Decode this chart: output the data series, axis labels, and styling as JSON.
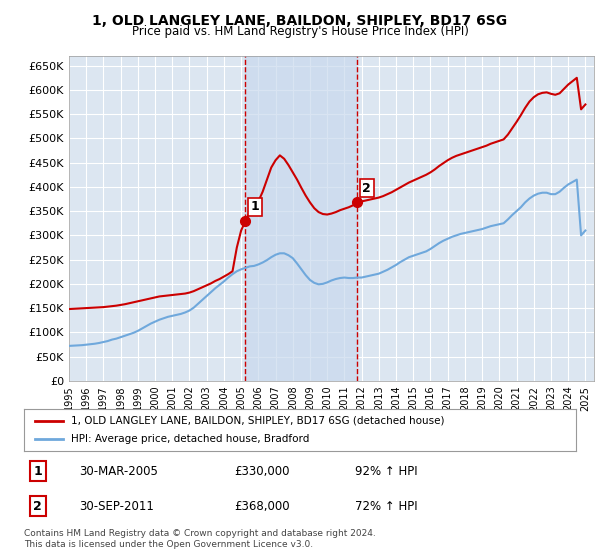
{
  "title": "1, OLD LANGLEY LANE, BAILDON, SHIPLEY, BD17 6SG",
  "subtitle": "Price paid vs. HM Land Registry's House Price Index (HPI)",
  "background_color": "#ffffff",
  "plot_bg_color": "#dce6f1",
  "grid_color": "#ffffff",
  "ylim": [
    0,
    670000
  ],
  "yticks": [
    0,
    50000,
    100000,
    150000,
    200000,
    250000,
    300000,
    350000,
    400000,
    450000,
    500000,
    550000,
    600000,
    650000
  ],
  "xlabel_years": [
    "1995",
    "1996",
    "1997",
    "1998",
    "1999",
    "2000",
    "2001",
    "2002",
    "2003",
    "2004",
    "2005",
    "2006",
    "2007",
    "2008",
    "2009",
    "2010",
    "2011",
    "2012",
    "2013",
    "2014",
    "2015",
    "2016",
    "2017",
    "2018",
    "2019",
    "2020",
    "2021",
    "2022",
    "2023",
    "2024",
    "2025"
  ],
  "sale1_date": 2005.25,
  "sale1_price": 330000,
  "sale1_label": "1",
  "sale2_date": 2011.75,
  "sale2_price": 368000,
  "sale2_label": "2",
  "hpi_line_color": "#6fa8dc",
  "price_line_color": "#cc0000",
  "sale_marker_color": "#cc0000",
  "shade_color": "#c9d9ed",
  "legend_line1": "1, OLD LANGLEY LANE, BAILDON, SHIPLEY, BD17 6SG (detached house)",
  "legend_line2": "HPI: Average price, detached house, Bradford",
  "table_row1": [
    "1",
    "30-MAR-2005",
    "£330,000",
    "92% ↑ HPI"
  ],
  "table_row2": [
    "2",
    "30-SEP-2011",
    "£368,000",
    "72% ↑ HPI"
  ],
  "footnote": "Contains HM Land Registry data © Crown copyright and database right 2024.\nThis data is licensed under the Open Government Licence v3.0.",
  "hpi_data_x": [
    1995.0,
    1995.25,
    1995.5,
    1995.75,
    1996.0,
    1996.25,
    1996.5,
    1996.75,
    1997.0,
    1997.25,
    1997.5,
    1997.75,
    1998.0,
    1998.25,
    1998.5,
    1998.75,
    1999.0,
    1999.25,
    1999.5,
    1999.75,
    2000.0,
    2000.25,
    2000.5,
    2000.75,
    2001.0,
    2001.25,
    2001.5,
    2001.75,
    2002.0,
    2002.25,
    2002.5,
    2002.75,
    2003.0,
    2003.25,
    2003.5,
    2003.75,
    2004.0,
    2004.25,
    2004.5,
    2004.75,
    2005.0,
    2005.25,
    2005.5,
    2005.75,
    2006.0,
    2006.25,
    2006.5,
    2006.75,
    2007.0,
    2007.25,
    2007.5,
    2007.75,
    2008.0,
    2008.25,
    2008.5,
    2008.75,
    2009.0,
    2009.25,
    2009.5,
    2009.75,
    2010.0,
    2010.25,
    2010.5,
    2010.75,
    2011.0,
    2011.25,
    2011.5,
    2011.75,
    2012.0,
    2012.25,
    2012.5,
    2012.75,
    2013.0,
    2013.25,
    2013.5,
    2013.75,
    2014.0,
    2014.25,
    2014.5,
    2014.75,
    2015.0,
    2015.25,
    2015.5,
    2015.75,
    2016.0,
    2016.25,
    2016.5,
    2016.75,
    2017.0,
    2017.25,
    2017.5,
    2017.75,
    2018.0,
    2018.25,
    2018.5,
    2018.75,
    2019.0,
    2019.25,
    2019.5,
    2019.75,
    2020.0,
    2020.25,
    2020.5,
    2020.75,
    2021.0,
    2021.25,
    2021.5,
    2021.75,
    2022.0,
    2022.25,
    2022.5,
    2022.75,
    2023.0,
    2023.25,
    2023.5,
    2023.75,
    2024.0,
    2024.25,
    2024.5,
    2024.75,
    2025.0
  ],
  "hpi_data_y": [
    72000,
    72500,
    73000,
    73500,
    74500,
    75500,
    76500,
    78000,
    80000,
    82000,
    85000,
    87000,
    90000,
    93000,
    96000,
    99000,
    103000,
    108000,
    113000,
    118000,
    122000,
    126000,
    129000,
    132000,
    134000,
    136000,
    138000,
    141000,
    145000,
    151000,
    159000,
    167000,
    175000,
    183000,
    191000,
    198000,
    205000,
    213000,
    220000,
    226000,
    230000,
    233000,
    236000,
    237000,
    240000,
    244000,
    249000,
    255000,
    260000,
    263000,
    263000,
    259000,
    253000,
    242000,
    230000,
    218000,
    208000,
    202000,
    199000,
    200000,
    203000,
    207000,
    210000,
    212000,
    213000,
    212000,
    212000,
    213000,
    213000,
    215000,
    217000,
    219000,
    221000,
    225000,
    229000,
    234000,
    239000,
    245000,
    250000,
    255000,
    258000,
    261000,
    264000,
    267000,
    272000,
    278000,
    284000,
    289000,
    293000,
    297000,
    300000,
    303000,
    305000,
    307000,
    309000,
    311000,
    313000,
    316000,
    319000,
    321000,
    323000,
    325000,
    333000,
    342000,
    350000,
    358000,
    368000,
    376000,
    382000,
    386000,
    388000,
    388000,
    385000,
    385000,
    390000,
    398000,
    405000,
    410000,
    415000,
    300000,
    310000
  ],
  "price_data_x": [
    1995.0,
    1995.25,
    1995.5,
    1995.75,
    1996.0,
    1996.25,
    1996.5,
    1996.75,
    1997.0,
    1997.25,
    1997.5,
    1997.75,
    1998.0,
    1998.25,
    1998.5,
    1998.75,
    1999.0,
    1999.25,
    1999.5,
    1999.75,
    2000.0,
    2000.25,
    2000.5,
    2000.75,
    2001.0,
    2001.25,
    2001.5,
    2001.75,
    2002.0,
    2002.25,
    2002.5,
    2002.75,
    2003.0,
    2003.25,
    2003.5,
    2003.75,
    2004.0,
    2004.25,
    2004.5,
    2004.75,
    2005.0,
    2005.25,
    2005.5,
    2005.75,
    2006.0,
    2006.25,
    2006.5,
    2006.75,
    2007.0,
    2007.25,
    2007.5,
    2007.75,
    2008.0,
    2008.25,
    2008.5,
    2008.75,
    2009.0,
    2009.25,
    2009.5,
    2009.75,
    2010.0,
    2010.25,
    2010.5,
    2010.75,
    2011.0,
    2011.25,
    2011.5,
    2011.75,
    2012.0,
    2012.25,
    2012.5,
    2012.75,
    2013.0,
    2013.25,
    2013.5,
    2013.75,
    2014.0,
    2014.25,
    2014.5,
    2014.75,
    2015.0,
    2015.25,
    2015.5,
    2015.75,
    2016.0,
    2016.25,
    2016.5,
    2016.75,
    2017.0,
    2017.25,
    2017.5,
    2017.75,
    2018.0,
    2018.25,
    2018.5,
    2018.75,
    2019.0,
    2019.25,
    2019.5,
    2019.75,
    2020.0,
    2020.25,
    2020.5,
    2020.75,
    2021.0,
    2021.25,
    2021.5,
    2021.75,
    2022.0,
    2022.25,
    2022.5,
    2022.75,
    2023.0,
    2023.25,
    2023.5,
    2023.75,
    2024.0,
    2024.25,
    2024.5,
    2024.75,
    2025.0
  ],
  "price_data_y": [
    148000,
    148500,
    149000,
    149500,
    150000,
    150500,
    151000,
    151500,
    152000,
    153000,
    154000,
    155000,
    156500,
    158000,
    160000,
    162000,
    164000,
    166000,
    168000,
    170000,
    172000,
    174000,
    175000,
    176000,
    177000,
    178000,
    179000,
    180000,
    182000,
    185000,
    189000,
    193000,
    197000,
    201000,
    206000,
    210000,
    215000,
    220000,
    226000,
    275000,
    310000,
    330000,
    348000,
    360000,
    370000,
    390000,
    415000,
    440000,
    455000,
    465000,
    458000,
    445000,
    430000,
    415000,
    398000,
    382000,
    368000,
    356000,
    348000,
    344000,
    343000,
    345000,
    348000,
    352000,
    355000,
    358000,
    362000,
    368000,
    370000,
    372000,
    374000,
    376000,
    378000,
    381000,
    385000,
    389000,
    394000,
    399000,
    404000,
    409000,
    413000,
    417000,
    421000,
    425000,
    430000,
    436000,
    443000,
    449000,
    455000,
    460000,
    464000,
    467000,
    470000,
    473000,
    476000,
    479000,
    482000,
    485000,
    489000,
    492000,
    495000,
    498000,
    508000,
    521000,
    534000,
    548000,
    563000,
    576000,
    585000,
    591000,
    594000,
    595000,
    592000,
    590000,
    593000,
    602000,
    611000,
    618000,
    625000,
    560000,
    570000
  ]
}
